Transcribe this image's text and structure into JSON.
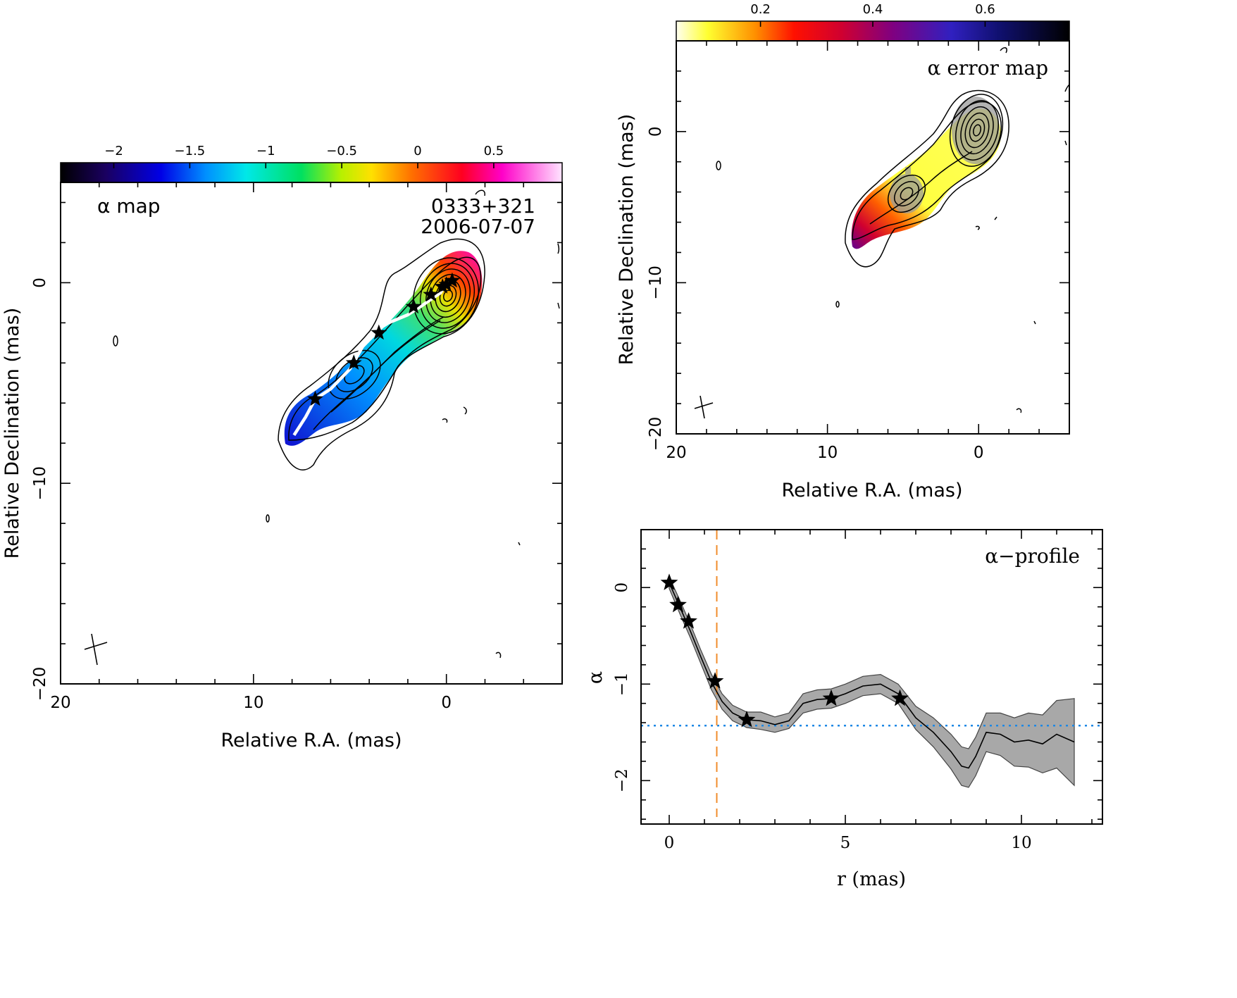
{
  "chart_data": [
    {
      "panel": "alpha-map",
      "type": "heatmap",
      "label": "α map",
      "source_name": "0333+321",
      "date": "2006-07-07",
      "xlabel": "Relative R.A. (mas)",
      "ylabel": "Relative Declination (mas)",
      "xlim": [
        20,
        -6
      ],
      "ylim": [
        -20,
        5
      ],
      "xticks": [
        20,
        10,
        0
      ],
      "yticks": [
        0,
        -10,
        -20
      ],
      "colorbar": {
        "ticks": [
          -2,
          -1.5,
          -1,
          -0.5,
          0,
          0.5
        ],
        "range": [
          -2.35,
          0.95
        ]
      },
      "ridge_line": {
        "x": [
          0,
          0.3,
          1.2,
          2,
          3,
          4,
          5,
          6,
          6.8,
          7.3,
          7.9
        ],
        "y": [
          0,
          -0.5,
          -1.1,
          -1.6,
          -2,
          -2.6,
          -4.3,
          -5.3,
          -5.8,
          -6.7,
          -7.6
        ]
      },
      "stars": {
        "x": [
          -0.3,
          0,
          0.2,
          0.8,
          1.7,
          3.5,
          4.8,
          6.8
        ],
        "y": [
          0.1,
          -0.1,
          -0.2,
          -0.6,
          -1.2,
          -2.5,
          -4,
          -5.8
        ]
      }
    },
    {
      "panel": "alpha-error-map",
      "type": "heatmap",
      "label": "α error map",
      "xlabel": "Relative R.A. (mas)",
      "ylabel": "Relative Declination (mas)",
      "xlim": [
        20,
        -6
      ],
      "ylim": [
        -20,
        6
      ],
      "xticks": [
        20,
        10,
        0
      ],
      "yticks": [
        0,
        -10,
        -20
      ],
      "colorbar": {
        "ticks": [
          0.2,
          0.4,
          0.6
        ],
        "range": [
          0.05,
          0.75
        ]
      }
    },
    {
      "panel": "alpha-profile",
      "type": "line",
      "label": "α−profile",
      "xlabel": "r (mas)",
      "ylabel": "α",
      "xlim": [
        -0.8,
        12.3
      ],
      "ylim": [
        -2.45,
        0.6
      ],
      "xticks": [
        0,
        5,
        10
      ],
      "yticks": [
        0,
        -1,
        -2
      ],
      "series": [
        {
          "x": [
            0,
            0.3,
            0.6,
            0.9,
            1.2,
            1.5,
            1.8,
            2.2,
            2.6,
            3.0,
            3.4,
            3.8,
            4.2,
            4.6,
            5.0,
            5.5,
            6.0,
            6.5,
            7.0,
            7.5,
            8.0,
            8.3,
            8.5,
            8.7,
            9.0,
            9.4,
            9.8,
            10.2,
            10.6,
            11.0,
            11.5
          ],
          "y": [
            0.05,
            -0.2,
            -0.45,
            -0.72,
            -0.98,
            -1.18,
            -1.3,
            -1.37,
            -1.38,
            -1.42,
            -1.38,
            -1.2,
            -1.16,
            -1.15,
            -1.1,
            -1.02,
            -1.0,
            -1.1,
            -1.35,
            -1.5,
            -1.7,
            -1.85,
            -1.87,
            -1.75,
            -1.5,
            -1.52,
            -1.6,
            -1.58,
            -1.62,
            -1.52,
            -1.6
          ],
          "err": [
            0.06,
            0.07,
            0.07,
            0.07,
            0.08,
            0.08,
            0.08,
            0.08,
            0.09,
            0.08,
            0.08,
            0.1,
            0.1,
            0.1,
            0.1,
            0.1,
            0.1,
            0.1,
            0.12,
            0.15,
            0.18,
            0.2,
            0.2,
            0.2,
            0.2,
            0.22,
            0.25,
            0.28,
            0.3,
            0.35,
            0.45
          ]
        }
      ],
      "stars": {
        "x": [
          0,
          0.25,
          0.55,
          1.3,
          2.2,
          4.6,
          6.55
        ],
        "y": [
          0.05,
          -0.18,
          -0.35,
          -0.97,
          -1.37,
          -1.15,
          -1.15
        ]
      },
      "reference_lines": {
        "vertical_x": 1.35,
        "horizontal_y": -1.43
      },
      "colors": {
        "vertical_line": "#f08c2c",
        "horizontal_line": "#1e88e5",
        "band": "#a8a8a8"
      }
    }
  ]
}
